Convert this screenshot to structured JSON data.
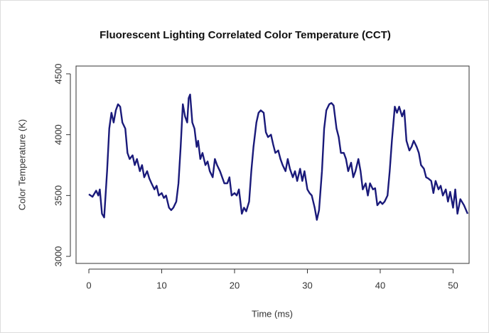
{
  "chart_data": {
    "type": "line",
    "title": "Fluorescent Lighting Correlated Color Temperature (CCT)",
    "xlabel": "Time (ms)",
    "ylabel": "Color Temperature (K)",
    "xlim": [
      -1.76,
      52.2
    ],
    "ylim": [
      2942,
      4564
    ],
    "xticks": [
      0,
      10,
      20,
      30,
      40,
      50
    ],
    "yticks": [
      3000,
      3500,
      4000,
      4500
    ],
    "x": [
      0,
      0.5,
      1,
      1.3,
      1.5,
      1.8,
      2.1,
      2.5,
      2.8,
      3.1,
      3.4,
      3.7,
      4,
      4.3,
      4.6,
      5,
      5.3,
      5.6,
      6,
      6.3,
      6.6,
      7,
      7.3,
      7.6,
      8,
      8.3,
      8.6,
      9,
      9.3,
      9.6,
      10,
      10.3,
      10.6,
      11,
      11.3,
      11.6,
      12,
      12.3,
      12.6,
      12.9,
      13.2,
      13.5,
      13.7,
      13.9,
      14.2,
      14.5,
      14.8,
      15,
      15.3,
      15.6,
      16,
      16.3,
      16.6,
      17,
      17.3,
      17.6,
      18,
      18.3,
      18.6,
      19,
      19.3,
      19.6,
      20,
      20.3,
      20.6,
      21,
      21.3,
      21.6,
      22,
      22.3,
      22.6,
      23,
      23.3,
      23.6,
      24,
      24.3,
      24.6,
      25,
      25.3,
      25.6,
      26,
      26.3,
      26.6,
      27,
      27.3,
      27.6,
      28,
      28.3,
      28.6,
      29,
      29.3,
      29.6,
      30,
      30.3,
      30.6,
      31,
      31.3,
      31.6,
      32,
      32.3,
      32.6,
      33,
      33.3,
      33.6,
      34,
      34.3,
      34.6,
      35,
      35.3,
      35.6,
      36,
      36.3,
      36.6,
      37,
      37.3,
      37.6,
      38,
      38.3,
      38.6,
      39,
      39.3,
      39.6,
      40,
      40.3,
      40.6,
      41,
      41.3,
      41.6,
      42,
      42.3,
      42.6,
      43,
      43.3,
      43.6,
      44,
      44.3,
      44.6,
      45,
      45.3,
      45.6,
      46,
      46.3,
      46.6,
      47,
      47.3,
      47.6,
      48,
      48.3,
      48.6,
      49,
      49.3,
      49.6,
      50,
      50.3,
      50.6,
      51,
      51.5,
      52
    ],
    "series": [
      {
        "name": "CCT",
        "color": "#1a1a7a",
        "values": [
          3510,
          3490,
          3540,
          3500,
          3550,
          3350,
          3320,
          3700,
          4050,
          4180,
          4100,
          4200,
          4250,
          4230,
          4100,
          4050,
          3850,
          3800,
          3830,
          3750,
          3800,
          3700,
          3750,
          3650,
          3700,
          3640,
          3600,
          3550,
          3580,
          3500,
          3520,
          3480,
          3500,
          3400,
          3380,
          3400,
          3450,
          3600,
          3900,
          4250,
          4150,
          4100,
          4300,
          4330,
          4100,
          4050,
          3900,
          3950,
          3800,
          3850,
          3750,
          3780,
          3700,
          3650,
          3800,
          3750,
          3700,
          3650,
          3600,
          3600,
          3650,
          3500,
          3520,
          3500,
          3550,
          3350,
          3400,
          3370,
          3450,
          3700,
          3900,
          4100,
          4180,
          4200,
          4180,
          4020,
          3980,
          4000,
          3920,
          3850,
          3870,
          3800,
          3750,
          3700,
          3800,
          3720,
          3650,
          3700,
          3620,
          3720,
          3620,
          3700,
          3550,
          3520,
          3500,
          3400,
          3300,
          3380,
          3700,
          4050,
          4200,
          4250,
          4260,
          4240,
          4050,
          3980,
          3850,
          3850,
          3800,
          3700,
          3770,
          3650,
          3700,
          3800,
          3700,
          3550,
          3600,
          3500,
          3600,
          3550,
          3560,
          3420,
          3450,
          3430,
          3450,
          3500,
          3700,
          3950,
          4230,
          4180,
          4230,
          4150,
          4200,
          3950,
          3870,
          3900,
          3950,
          3900,
          3850,
          3750,
          3720,
          3650,
          3640,
          3620,
          3520,
          3620,
          3550,
          3580,
          3500,
          3550,
          3450,
          3530,
          3400,
          3550,
          3350,
          3470,
          3420,
          3350
        ]
      }
    ]
  }
}
